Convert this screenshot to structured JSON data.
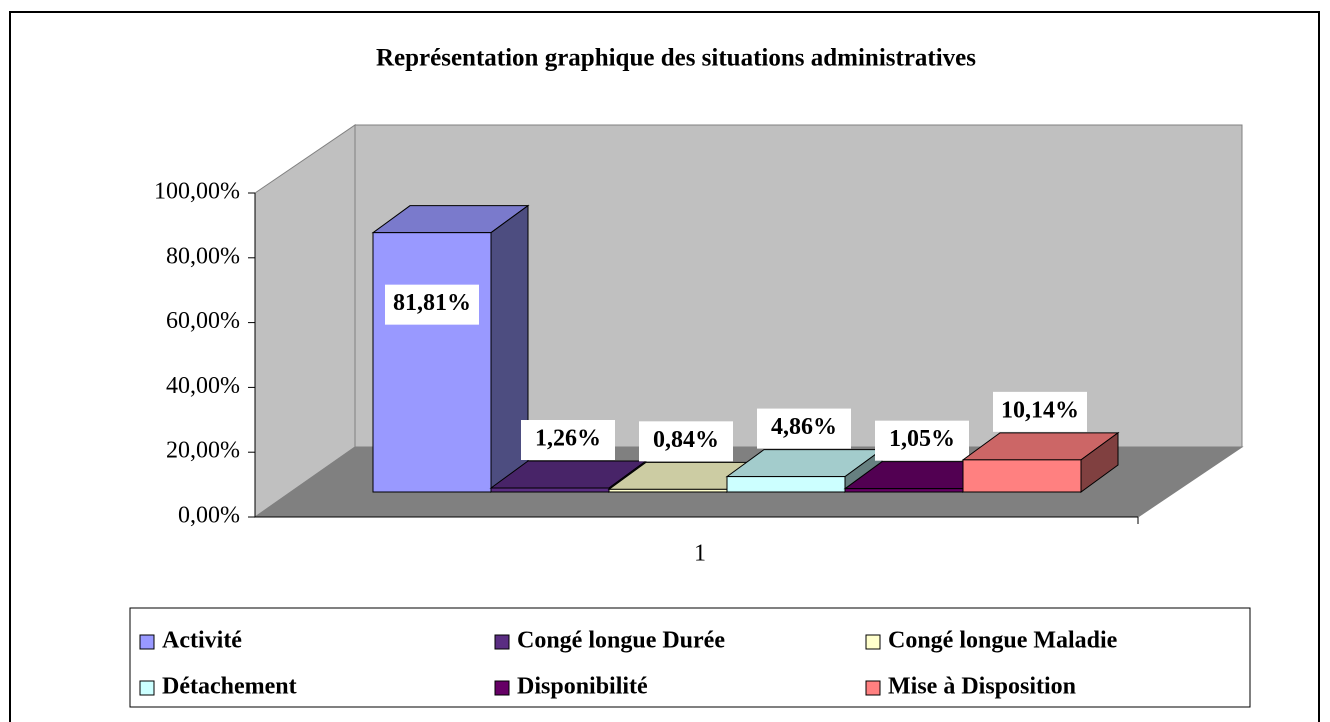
{
  "chart_data": {
    "type": "bar3d",
    "title": "Représentation graphique des situations administratives",
    "categories": [
      "1"
    ],
    "ylim": [
      0,
      100
    ],
    "yticks": [
      {
        "value": 0,
        "label": "0,00%"
      },
      {
        "value": 20,
        "label": "20,00%"
      },
      {
        "value": 40,
        "label": "40,00%"
      },
      {
        "value": 60,
        "label": "60,00%"
      },
      {
        "value": 80,
        "label": "80,00%"
      },
      {
        "value": 100,
        "label": "100,00%"
      }
    ],
    "grid": false,
    "legend": "bottom",
    "series": [
      {
        "name": "Activité",
        "color": "#9999ff",
        "values": [
          81.81
        ],
        "value_labels": [
          "81,81%"
        ]
      },
      {
        "name": "Congé longue Durée",
        "color": "#5a2d82",
        "values": [
          1.26
        ],
        "value_labels": [
          "1,26%"
        ]
      },
      {
        "name": "Congé longue Maladie",
        "color": "#ffffcc",
        "values": [
          0.84
        ],
        "value_labels": [
          "0,84%"
        ]
      },
      {
        "name": "Détachement",
        "color": "#ccffff",
        "values": [
          4.86
        ],
        "value_labels": [
          "4,86%"
        ]
      },
      {
        "name": "Disponibilité",
        "color": "#660066",
        "values": [
          1.05
        ],
        "value_labels": [
          "1,05%"
        ]
      },
      {
        "name": "Mise à Disposition",
        "color": "#ff8080",
        "values": [
          10.14
        ],
        "value_labels": [
          "10,14%"
        ]
      }
    ]
  }
}
